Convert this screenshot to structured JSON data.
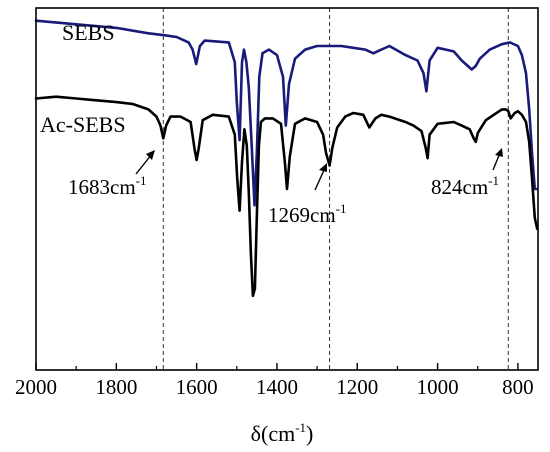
{
  "chart_data": {
    "type": "line",
    "xlabel": "δ(cm",
    "xlabel_sup": "-1",
    "xlim": [
      2000,
      750
    ],
    "x_reversed": true,
    "x_ticks": [
      2000,
      1800,
      1600,
      1400,
      1200,
      1000,
      800
    ],
    "x_tick_labels": [
      "2000",
      "1800",
      "1600",
      "1400",
      "1200",
      "1000",
      "800"
    ],
    "ylim": [
      0,
      1
    ],
    "y_ticks_shown": false,
    "grid": false,
    "reference_lines_x": [
      1683,
      1269,
      824
    ],
    "series": [
      {
        "name": "SEBS",
        "color": "#1a1a7a",
        "x": [
          2000,
          1900,
          1800,
          1720,
          1683,
          1650,
          1620,
          1610,
          1601,
          1592,
          1580,
          1520,
          1505,
          1500,
          1493,
          1487,
          1482,
          1476,
          1470,
          1463,
          1456,
          1450,
          1444,
          1436,
          1420,
          1400,
          1385,
          1378,
          1370,
          1355,
          1330,
          1300,
          1270,
          1240,
          1210,
          1180,
          1160,
          1140,
          1120,
          1080,
          1050,
          1035,
          1028,
          1020,
          1000,
          960,
          940,
          915,
          905,
          895,
          870,
          840,
          820,
          800,
          790,
          780,
          772,
          765,
          758,
          752
        ],
        "y": [
          0.965,
          0.955,
          0.945,
          0.93,
          0.925,
          0.92,
          0.905,
          0.885,
          0.845,
          0.895,
          0.91,
          0.905,
          0.85,
          0.74,
          0.635,
          0.85,
          0.885,
          0.85,
          0.78,
          0.62,
          0.455,
          0.605,
          0.81,
          0.875,
          0.885,
          0.87,
          0.81,
          0.675,
          0.79,
          0.86,
          0.885,
          0.895,
          0.895,
          0.895,
          0.89,
          0.885,
          0.875,
          0.885,
          0.895,
          0.87,
          0.855,
          0.82,
          0.77,
          0.855,
          0.89,
          0.88,
          0.855,
          0.83,
          0.84,
          0.86,
          0.885,
          0.9,
          0.905,
          0.895,
          0.87,
          0.82,
          0.72,
          0.6,
          0.5,
          0.5
        ]
      },
      {
        "name": "Ac-SEBS",
        "color": "#000000",
        "x": [
          2000,
          1950,
          1900,
          1850,
          1800,
          1760,
          1720,
          1700,
          1690,
          1683,
          1676,
          1665,
          1640,
          1615,
          1605,
          1600,
          1595,
          1585,
          1560,
          1520,
          1505,
          1499,
          1493,
          1487,
          1481,
          1475,
          1470,
          1465,
          1460,
          1455,
          1450,
          1445,
          1440,
          1430,
          1410,
          1390,
          1380,
          1375,
          1368,
          1355,
          1330,
          1300,
          1285,
          1278,
          1269,
          1262,
          1250,
          1230,
          1210,
          1185,
          1170,
          1155,
          1140,
          1120,
          1080,
          1060,
          1040,
          1030,
          1025,
          1020,
          1000,
          960,
          940,
          920,
          910,
          905,
          900,
          880,
          860,
          840,
          830,
          824,
          818,
          808,
          800,
          790,
          780,
          772,
          765,
          758,
          752
        ],
        "y": [
          0.75,
          0.755,
          0.75,
          0.745,
          0.74,
          0.735,
          0.72,
          0.7,
          0.675,
          0.64,
          0.675,
          0.7,
          0.7,
          0.685,
          0.61,
          0.58,
          0.61,
          0.69,
          0.705,
          0.7,
          0.65,
          0.53,
          0.44,
          0.575,
          0.665,
          0.62,
          0.49,
          0.32,
          0.205,
          0.225,
          0.43,
          0.62,
          0.685,
          0.695,
          0.695,
          0.68,
          0.57,
          0.5,
          0.59,
          0.68,
          0.695,
          0.685,
          0.65,
          0.6,
          0.565,
          0.615,
          0.67,
          0.7,
          0.71,
          0.705,
          0.67,
          0.695,
          0.705,
          0.7,
          0.685,
          0.675,
          0.66,
          0.615,
          0.585,
          0.65,
          0.68,
          0.685,
          0.675,
          0.665,
          0.64,
          0.63,
          0.655,
          0.69,
          0.705,
          0.72,
          0.72,
          0.715,
          0.695,
          0.71,
          0.715,
          0.705,
          0.685,
          0.63,
          0.53,
          0.42,
          0.39
        ]
      }
    ],
    "annotations": [
      {
        "name": "annotation-1683",
        "text": "1683cm",
        "sup": "-1",
        "x": 1683
      },
      {
        "name": "annotation-1269",
        "text": "1269cm",
        "sup": "-1",
        "x": 1269
      },
      {
        "name": "annotation-824",
        "text": "824cm",
        "sup": "-1",
        "x": 824
      }
    ]
  }
}
